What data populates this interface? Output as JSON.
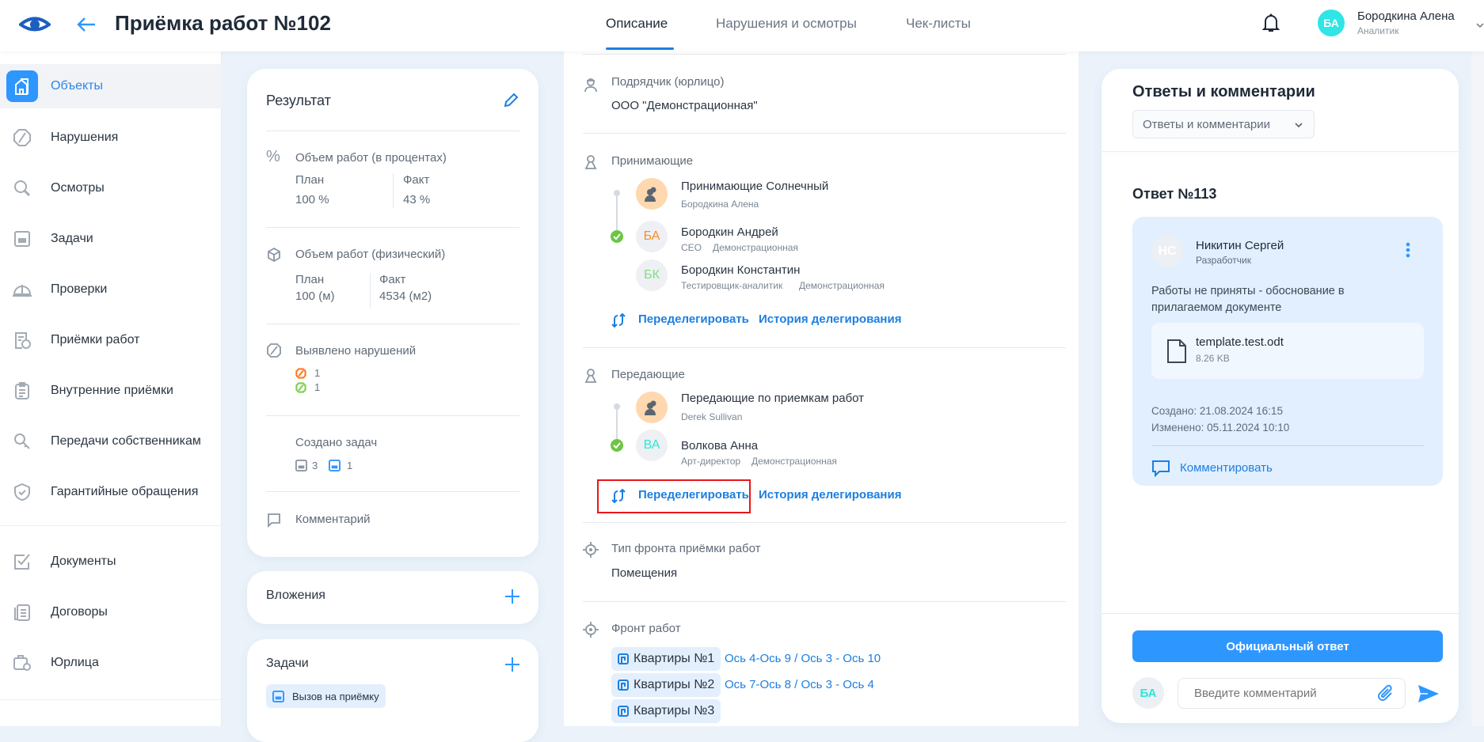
{
  "header": {
    "title": "Приёмка работ №102",
    "tabs": [
      {
        "label": "Описание",
        "active": true
      },
      {
        "label": "Нарушения и осмотры"
      },
      {
        "label": "Чек-листы"
      }
    ],
    "user": {
      "initials": "БА",
      "name": "Бородкина Алена",
      "role": "Аналитик",
      "avatar_color": "#2ee6e6"
    }
  },
  "sidebar": {
    "items": [
      {
        "label": "Объекты",
        "icon": "building-icon",
        "active": true
      },
      {
        "label": "Нарушения",
        "icon": "violation-icon"
      },
      {
        "label": "Осмотры",
        "icon": "search-icon"
      },
      {
        "label": "Задачи",
        "icon": "task-icon"
      },
      {
        "label": "Проверки",
        "icon": "helmet-icon"
      },
      {
        "label": "Приёмки работ",
        "icon": "acceptance-icon"
      },
      {
        "label": "Внутренние приёмки",
        "icon": "clipboard-icon"
      },
      {
        "label": "Передачи собственникам",
        "icon": "key-icon"
      },
      {
        "label": "Гарантийные обращения",
        "icon": "shield-icon"
      }
    ],
    "items2": [
      {
        "label": "Документы",
        "icon": "checkbox-icon"
      },
      {
        "label": "Договоры",
        "icon": "contract-icon"
      },
      {
        "label": "Юрлица",
        "icon": "company-icon"
      }
    ]
  },
  "result": {
    "title": "Результат",
    "percent": {
      "label": "Объем работ (в процентах)",
      "plan_label": "План",
      "plan": "100 %",
      "fact_label": "Факт",
      "fact": "43 %"
    },
    "physical": {
      "label": "Объем работ (физический)",
      "plan_label": "План",
      "plan": "100 (м)",
      "fact_label": "Факт",
      "fact": "4534 (м2)"
    },
    "violations": {
      "label": "Выявлено нарушений",
      "open": "1",
      "closed": "1"
    },
    "tasks": {
      "label": "Создано задач",
      "gray": "3",
      "blue": "1"
    },
    "comment": {
      "label": "Комментарий"
    }
  },
  "attachments": {
    "title": "Вложения"
  },
  "tasks_card": {
    "title": "Задачи",
    "chip": "Вызов на приёмку"
  },
  "main": {
    "contractor": {
      "label": "Подрядчик (юрлицо)",
      "value": "ООО \"Демонстрационная\""
    },
    "receivers": {
      "label": "Принимающие",
      "group": "Принимающие Солнечный",
      "group_sub": "Бородкина Алена",
      "people": [
        {
          "initials": "БА",
          "color": "#ff8a1f",
          "name": "Бородкин Андрей",
          "role": "CEO",
          "org": "Демонстрационная",
          "checked": true
        },
        {
          "initials": "БК",
          "color": "#7ee07e",
          "name": "Бородкин Константин",
          "role": "Тестировщик-аналитик",
          "org": "Демонстрационная"
        }
      ],
      "redelegate": "Переделегировать",
      "history": "История делегирования"
    },
    "senders": {
      "label": "Передающие",
      "group": "Передающие по приемкам работ",
      "group_sub": "Derek Sullivan",
      "people": [
        {
          "initials": "ВА",
          "color": "#2ee6d6",
          "name": "Волкова Анна",
          "role": "Арт-директор",
          "org": "Демонстрационная",
          "checked": true
        }
      ],
      "redelegate": "Переделегировать",
      "history": "История делегирования"
    },
    "front_type": {
      "label": "Тип фронта приёмки работ",
      "value": "Помещения"
    },
    "front": {
      "label": "Фронт работ",
      "items": [
        {
          "name": "Квартиры №1",
          "axes": "Ось 4-Ось 9 / Ось 3 - Ось 10"
        },
        {
          "name": "Квартиры №2",
          "axes": "Ось 7-Ось 8 / Ось 3 - Ось 4"
        },
        {
          "name": "Квартиры №3",
          "axes": ""
        }
      ]
    }
  },
  "comments": {
    "title": "Ответы и комментарии",
    "filter": "Ответы и комментарии",
    "answer_title": "Ответ №113",
    "answer": {
      "initials": "НС",
      "author": "Никитин Сергей",
      "role": "Разработчик",
      "text": "Работы не приняты - обоснование в прилагаемом документе",
      "file_name": "template.test.odt",
      "file_size": "8.26 KB",
      "created": "Создано: 21.08.2024 16:15",
      "modified": "Изменено: 05.11.2024 10:10",
      "comment_link": "Комментировать"
    },
    "official_button": "Официальный ответ",
    "input_placeholder": "Введите комментарий",
    "user_initials": "БА"
  },
  "colors": {
    "accent": "#2e96ff",
    "link": "#1c7fe0",
    "highlight": "#e8161b"
  }
}
